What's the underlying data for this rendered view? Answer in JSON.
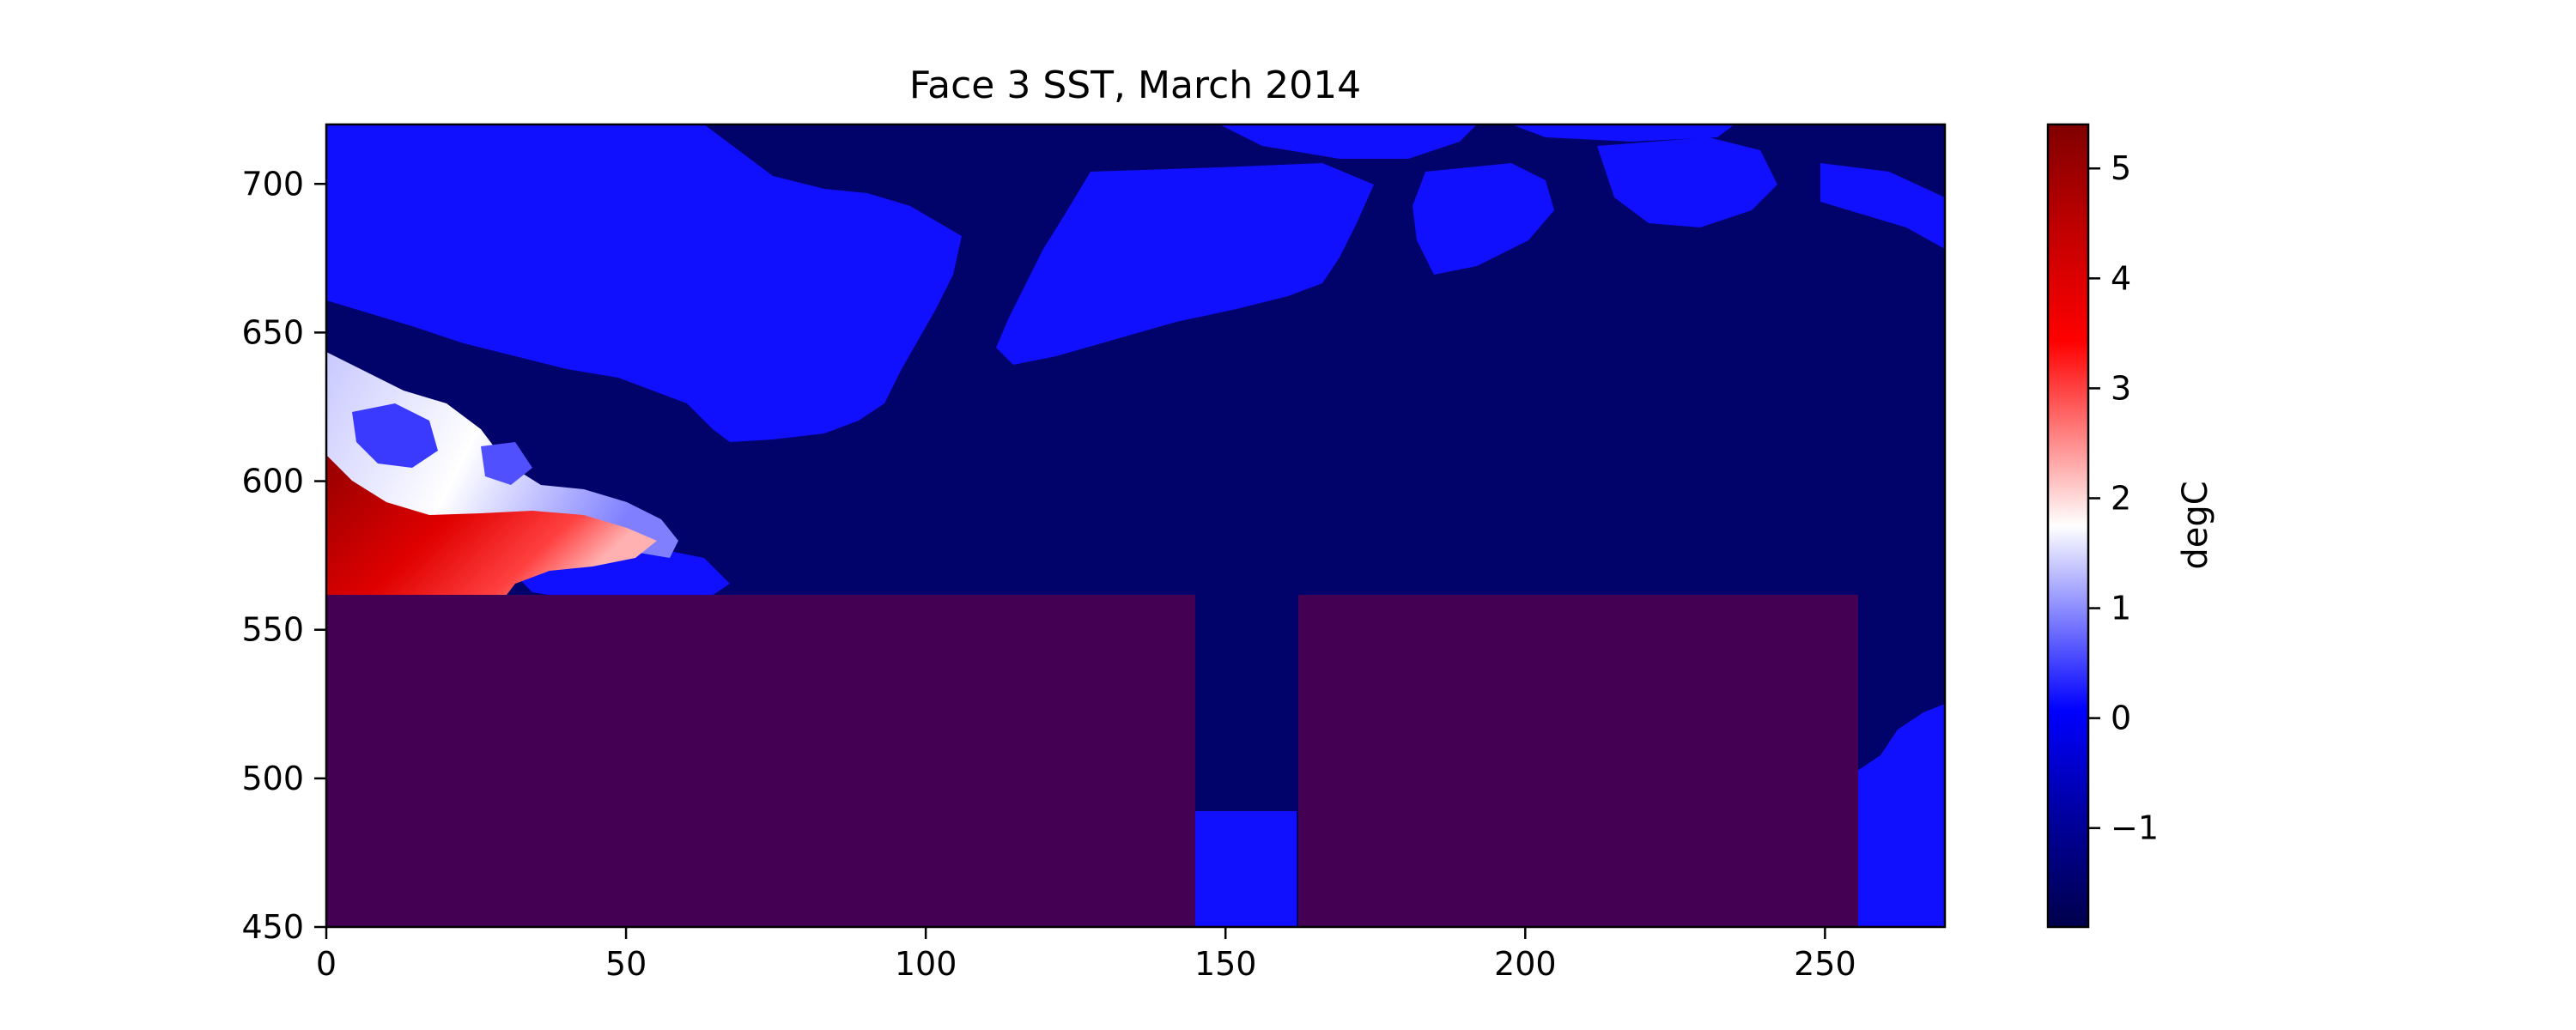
{
  "chart_data": {
    "type": "heatmap",
    "title": "Face 3 SST, March 2014",
    "xlabel": "",
    "ylabel": "",
    "xlim": [
      0,
      270
    ],
    "ylim": [
      450,
      720
    ],
    "x_ticks": [
      0,
      50,
      100,
      150,
      200,
      250
    ],
    "y_ticks": [
      450,
      500,
      550,
      600,
      650,
      700
    ],
    "y_tick_labels": [
      "450",
      "500",
      "550",
      "600",
      "650",
      "700"
    ],
    "x_tick_labels": [
      "0",
      "50",
      "100",
      "150",
      "200",
      "250"
    ],
    "colorbar": {
      "label": "degC",
      "colormap": "seismic",
      "range": [
        -1.9,
        5.4
      ],
      "ticks": [
        -1,
        0,
        1,
        2,
        3,
        4,
        5
      ],
      "tick_labels": [
        "−1",
        "0",
        "1",
        "2",
        "3",
        "4",
        "5"
      ]
    },
    "masked_color": "#440154",
    "masked_regions": [
      {
        "x": [
          0,
          145
        ],
        "y": [
          450,
          562
        ]
      },
      {
        "x": [
          162,
          255
        ],
        "y": [
          450,
          562
        ]
      }
    ],
    "field_regions": [
      {
        "name": "ocean background",
        "value": -1.8
      },
      {
        "name": "ice-free water patches",
        "value": -0.5
      },
      {
        "name": "warm Atlantic inflow",
        "value": 4.5
      }
    ],
    "grid": false
  },
  "colors": {
    "cold_background": "#02036a",
    "blue_patch": "#1010fe",
    "masked": "#440154"
  }
}
